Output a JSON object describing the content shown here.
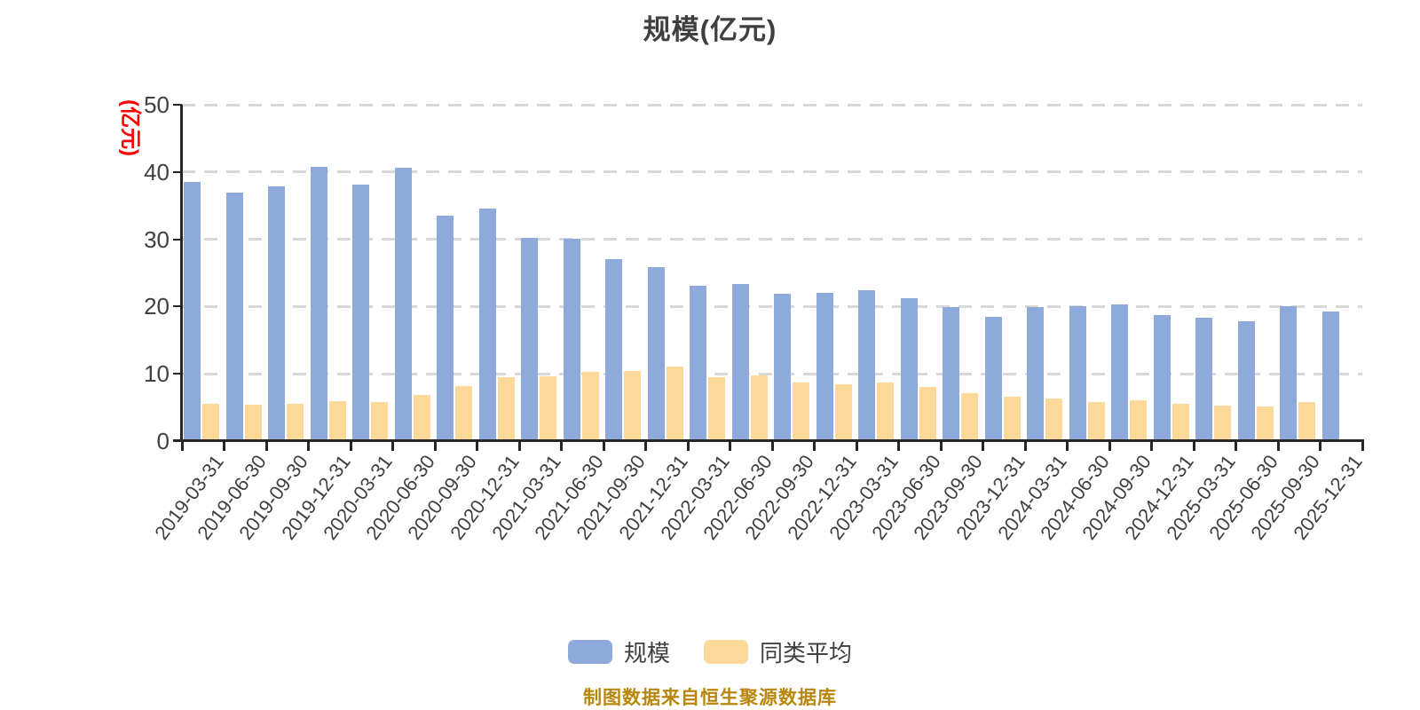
{
  "title": "规模(亿元)",
  "y_axis": {
    "unit_label": "(亿元)",
    "ticks": [
      0,
      10,
      20,
      30,
      40,
      50
    ]
  },
  "legend": {
    "items": [
      {
        "label": "规模",
        "color": "#8DAADB"
      },
      {
        "label": "同类平均",
        "color": "#FCD999"
      }
    ]
  },
  "footer": {
    "source_note": "制图数据来自恒生聚源数据库"
  },
  "colors": {
    "scale_bar": "#8DAADB",
    "average_bar": "#FCD999",
    "grid": "#D8D8D8",
    "axis": "#262626",
    "text": "#3F3F3F",
    "unit_label": "#FF0000",
    "source_note": "#B8860B"
  },
  "chart_data": {
    "type": "bar",
    "title": "规模(亿元)",
    "ylabel": "(亿元)",
    "ylim": [
      0,
      50
    ],
    "yticks": [
      0,
      10,
      20,
      30,
      40,
      50
    ],
    "grid": "horizontal-dashed",
    "legend_position": "bottom",
    "categories": [
      "2019-03-31",
      "2019-06-30",
      "2019-09-30",
      "2019-12-31",
      "2020-03-31",
      "2020-06-30",
      "2020-09-30",
      "2020-12-31",
      "2021-03-31",
      "2021-06-30",
      "2021-09-30",
      "2021-12-31",
      "2022-03-31",
      "2022-06-30",
      "2022-09-30",
      "2022-12-31",
      "2023-03-31",
      "2023-06-30",
      "2023-09-30",
      "2023-12-31",
      "2024-03-31",
      "2024-06-30",
      "2024-09-30",
      "2024-12-31",
      "2025-03-31",
      "2025-06-30",
      "2025-09-30",
      "2025-12-31"
    ],
    "series": [
      {
        "name": "规模",
        "color": "#8DAADB",
        "values": [
          38.5,
          37.0,
          37.9,
          40.7,
          38.1,
          40.6,
          33.5,
          34.6,
          30.2,
          30.1,
          27.1,
          25.8,
          23.1,
          23.4,
          21.9,
          22.0,
          22.4,
          21.3,
          19.9,
          18.5,
          19.9,
          20.1,
          20.3,
          18.7,
          18.3,
          17.8,
          20.0,
          19.3
        ]
      },
      {
        "name": "同类平均",
        "color": "#FCD999",
        "values": [
          5.5,
          5.4,
          5.6,
          5.9,
          5.8,
          6.9,
          8.2,
          9.5,
          9.6,
          10.3,
          10.4,
          11.1,
          9.5,
          9.7,
          8.7,
          8.4,
          8.7,
          8.0,
          7.1,
          6.6,
          6.3,
          5.8,
          6.1,
          5.6,
          5.3,
          5.2,
          5.8,
          null
        ]
      }
    ]
  }
}
